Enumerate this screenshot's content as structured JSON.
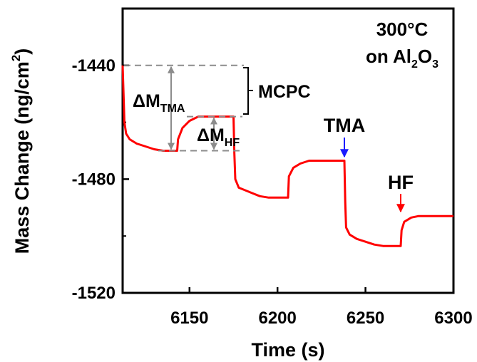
{
  "chart_data": {
    "type": "line",
    "xlabel": "Time (s)",
    "ylabel": "Mass Change (ng/cm",
    "ylabel_sup": "2",
    "ylabel_close": ")",
    "xlim": [
      6112,
      6300
    ],
    "ylim": [
      -1520,
      -1420
    ],
    "xticks": [
      6150,
      6200,
      6250,
      6300
    ],
    "yticks": [
      -1440,
      -1480,
      -1520
    ],
    "grid": false,
    "series": [
      {
        "color": "#ff0000",
        "x": [
          6112,
          6113,
          6114,
          6116,
          6120,
          6125,
          6130,
          6135,
          6140,
          6143,
          6143.5,
          6146,
          6150,
          6155,
          6160,
          6165,
          6170,
          6175,
          6175.5,
          6176,
          6178,
          6182,
          6186,
          6190,
          6195,
          6200,
          6206,
          6206.5,
          6209,
          6213,
          6218,
          6223,
          6228,
          6233,
          6238,
          6238.5,
          6239,
          6241,
          6245,
          6250,
          6255,
          6260,
          6264,
          6270,
          6270.5,
          6272,
          6276,
          6280,
          6285,
          6290,
          6295,
          6300
        ],
        "y": [
          -1440,
          -1460,
          -1464,
          -1466,
          -1467.5,
          -1468.5,
          -1469.5,
          -1470,
          -1470,
          -1470,
          -1466,
          -1462,
          -1459.5,
          -1458,
          -1458,
          -1458,
          -1458,
          -1458,
          -1471,
          -1480,
          -1483,
          -1484,
          -1485,
          -1486,
          -1486.5,
          -1486.5,
          -1486.5,
          -1479,
          -1476,
          -1474.5,
          -1473.5,
          -1473.5,
          -1473.5,
          -1473.5,
          -1473.5,
          -1488,
          -1497,
          -1499.5,
          -1501,
          -1502,
          -1503,
          -1503.5,
          -1503.5,
          -1503.5,
          -1498,
          -1495,
          -1493.5,
          -1493,
          -1493,
          -1493,
          -1493,
          -1493
        ]
      }
    ],
    "annotations": {
      "condition_line1": "300°C",
      "condition_prefix": "on Al",
      "condition_sub1": "2",
      "condition_mid": "O",
      "condition_sub2": "3",
      "dm_tma": "ΔM",
      "dm_tma_sub": "TMA",
      "dm_hf": "ΔM",
      "dm_hf_sub": "HF",
      "mcpc": "MCPC",
      "tma_label": "TMA",
      "tma_color": "#1a1aff",
      "tma_arrow_x": 6238,
      "hf_label": "HF",
      "hf_color": "#ff0000",
      "hf_arrow_x": 6270,
      "ref_top": -1440,
      "ref_bottom": -1470,
      "ref_hf": -1458
    }
  }
}
